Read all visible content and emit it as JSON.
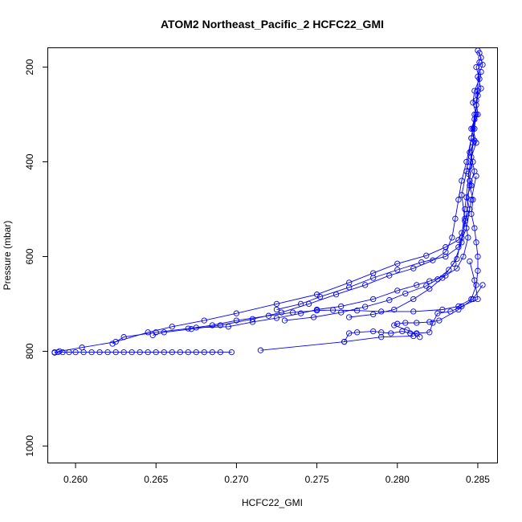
{
  "chart_data": {
    "type": "line",
    "title": "ATOM2 Northeast_Pacific_2 HCFC22_GMI",
    "xlabel": "HCFC22_GMI",
    "ylabel": "Pressure (mbar)",
    "xlim": [
      0.2583,
      0.2862
    ],
    "ylim": [
      1035,
      160
    ],
    "y_axis_inverted": true,
    "xticks": [
      0.26,
      0.265,
      0.27,
      0.275,
      0.28,
      0.285
    ],
    "xtick_labels": [
      "0.260",
      "0.265",
      "0.270",
      "0.275",
      "0.280",
      "0.285"
    ],
    "yticks": [
      200,
      400,
      600,
      800,
      1000
    ],
    "ytick_labels": [
      "200",
      "400",
      "600",
      "800",
      "1000"
    ],
    "grid": false,
    "legend": "none",
    "marker": "open-circle",
    "color": "#0000ff",
    "series": [
      {
        "points": [
          [
            0.285,
            165
          ],
          [
            0.2852,
            180
          ],
          [
            0.2849,
            200
          ],
          [
            0.2851,
            225
          ],
          [
            0.2848,
            250
          ],
          [
            0.2847,
            275
          ],
          [
            0.2849,
            300
          ],
          [
            0.2846,
            330
          ],
          [
            0.2848,
            355
          ],
          [
            0.2845,
            380
          ],
          [
            0.2847,
            400
          ],
          [
            0.2844,
            425
          ],
          [
            0.2846,
            450
          ],
          [
            0.2843,
            475
          ],
          [
            0.2845,
            500
          ],
          [
            0.2842,
            525
          ],
          [
            0.284,
            550
          ],
          [
            0.2838,
            565
          ],
          [
            0.283,
            580
          ],
          [
            0.2818,
            598
          ],
          [
            0.28,
            615
          ],
          [
            0.2785,
            635
          ],
          [
            0.277,
            655
          ],
          [
            0.275,
            680
          ],
          [
            0.2725,
            700
          ],
          [
            0.27,
            720
          ],
          [
            0.268,
            735
          ],
          [
            0.266,
            748
          ],
          [
            0.2645,
            760
          ],
          [
            0.2625,
            780
          ],
          [
            0.2604,
            792
          ],
          [
            0.259,
            800
          ],
          [
            0.2587,
            803
          ]
        ]
      },
      {
        "points": [
          [
            0.2851,
            170
          ],
          [
            0.2853,
            195
          ],
          [
            0.285,
            220
          ],
          [
            0.2852,
            245
          ],
          [
            0.2849,
            270
          ],
          [
            0.285,
            300
          ],
          [
            0.2847,
            330
          ],
          [
            0.2849,
            360
          ],
          [
            0.2846,
            390
          ],
          [
            0.2848,
            420
          ],
          [
            0.2845,
            450
          ],
          [
            0.2847,
            480
          ],
          [
            0.2846,
            510
          ],
          [
            0.2848,
            540
          ],
          [
            0.2849,
            570
          ],
          [
            0.285,
            600
          ],
          [
            0.285,
            630
          ],
          [
            0.2849,
            660
          ],
          [
            0.2846,
            690
          ],
          [
            0.2838,
            705
          ],
          [
            0.2828,
            712
          ],
          [
            0.281,
            716
          ],
          [
            0.279,
            716
          ],
          [
            0.2775,
            714
          ],
          [
            0.276,
            713
          ],
          [
            0.275,
            714
          ],
          [
            0.2735,
            718
          ],
          [
            0.272,
            725
          ],
          [
            0.27,
            735
          ],
          [
            0.2685,
            745
          ],
          [
            0.267,
            752
          ],
          [
            0.265,
            760
          ],
          [
            0.263,
            770
          ],
          [
            0.2623,
            784
          ]
        ]
      },
      {
        "points": [
          [
            0.2852,
            210
          ],
          [
            0.285,
            260
          ],
          [
            0.2848,
            310
          ],
          [
            0.2846,
            350
          ],
          [
            0.2843,
            400
          ],
          [
            0.284,
            440
          ],
          [
            0.2838,
            480
          ],
          [
            0.2836,
            520
          ],
          [
            0.2834,
            560
          ],
          [
            0.283,
            590
          ],
          [
            0.2822,
            608
          ],
          [
            0.281,
            625
          ],
          [
            0.2795,
            640
          ],
          [
            0.278,
            660
          ],
          [
            0.2762,
            680
          ],
          [
            0.2745,
            700
          ],
          [
            0.2728,
            718
          ],
          [
            0.271,
            732
          ],
          [
            0.269,
            745
          ],
          [
            0.2672,
            753
          ],
          [
            0.2655,
            760
          ],
          [
            0.2648,
            766
          ]
        ]
      },
      {
        "points": [
          [
            0.2848,
            300
          ],
          [
            0.2846,
            350
          ],
          [
            0.2843,
            420
          ],
          [
            0.284,
            470
          ],
          [
            0.2842,
            520
          ],
          [
            0.2844,
            560
          ],
          [
            0.2841,
            600
          ],
          [
            0.2837,
            625
          ],
          [
            0.283,
            640
          ],
          [
            0.282,
            652
          ],
          [
            0.2812,
            660
          ],
          [
            0.28,
            672
          ],
          [
            0.2785,
            690
          ],
          [
            0.2765,
            705
          ],
          [
            0.275,
            712
          ],
          [
            0.274,
            720
          ],
          [
            0.2725,
            730
          ],
          [
            0.271,
            738
          ],
          [
            0.2695,
            748
          ],
          [
            0.2675,
            750
          ]
        ]
      },
      {
        "points": [
          [
            0.285,
            250
          ],
          [
            0.2848,
            330
          ],
          [
            0.2845,
            410
          ],
          [
            0.2842,
            500
          ],
          [
            0.284,
            560
          ],
          [
            0.2837,
            605
          ],
          [
            0.2832,
            628
          ],
          [
            0.2825,
            648
          ],
          [
            0.2818,
            662
          ],
          [
            0.2805,
            678
          ],
          [
            0.2795,
            692
          ],
          [
            0.278,
            706
          ],
          [
            0.2765,
            718
          ],
          [
            0.2748,
            728
          ],
          [
            0.273,
            735
          ]
        ]
      },
      {
        "points": [
          [
            0.2845,
            610
          ],
          [
            0.2848,
            650
          ],
          [
            0.285,
            690
          ],
          [
            0.284,
            705
          ],
          [
            0.2833,
            716
          ],
          [
            0.2825,
            720
          ],
          [
            0.2822,
            740
          ],
          [
            0.282,
            760
          ],
          [
            0.2812,
            762
          ],
          [
            0.2808,
            762
          ],
          [
            0.2803,
            758
          ],
          [
            0.2796,
            762
          ],
          [
            0.279,
            760
          ],
          [
            0.2785,
            758
          ],
          [
            0.2775,
            760
          ],
          [
            0.277,
            762
          ],
          [
            0.2767,
            780
          ]
        ]
      },
      {
        "points": [
          [
            0.2853,
            660
          ],
          [
            0.2847,
            690
          ],
          [
            0.2838,
            712
          ],
          [
            0.2826,
            735
          ],
          [
            0.282,
            738
          ],
          [
            0.2812,
            740
          ],
          [
            0.2805,
            740
          ],
          [
            0.28,
            742
          ],
          [
            0.2798,
            745
          ],
          [
            0.2806,
            755
          ],
          [
            0.2812,
            763
          ],
          [
            0.2814,
            770
          ]
        ]
      },
      {
        "points": [
          [
            0.2849,
            430
          ],
          [
            0.2846,
            480
          ],
          [
            0.2843,
            540
          ],
          [
            0.2838,
            580
          ],
          [
            0.283,
            600
          ],
          [
            0.2815,
            612
          ],
          [
            0.28,
            628
          ],
          [
            0.2785,
            645
          ],
          [
            0.277,
            665
          ],
          [
            0.2752,
            685
          ],
          [
            0.274,
            700
          ],
          [
            0.2725,
            712
          ]
        ]
      },
      {
        "points": [
          [
            0.2851,
            190
          ],
          [
            0.2849,
            280
          ],
          [
            0.2847,
            360
          ],
          [
            0.2845,
            440
          ],
          [
            0.2843,
            510
          ],
          [
            0.284,
            570
          ],
          [
            0.2835,
            615
          ],
          [
            0.2828,
            645
          ],
          [
            0.282,
            668
          ],
          [
            0.281,
            690
          ],
          [
            0.2798,
            712
          ],
          [
            0.2785,
            722
          ],
          [
            0.277,
            728
          ]
        ]
      },
      {
        "points": [
          [
            0.2697,
            802
          ],
          [
            0.269,
            802
          ],
          [
            0.2685,
            802
          ],
          [
            0.268,
            802
          ],
          [
            0.2675,
            802
          ],
          [
            0.267,
            802
          ],
          [
            0.2665,
            802
          ],
          [
            0.266,
            802
          ],
          [
            0.2655,
            802
          ],
          [
            0.265,
            802
          ],
          [
            0.2645,
            802
          ],
          [
            0.264,
            802
          ],
          [
            0.2635,
            802
          ],
          [
            0.263,
            802
          ],
          [
            0.2625,
            802
          ],
          [
            0.262,
            802
          ],
          [
            0.2615,
            802
          ],
          [
            0.261,
            802
          ],
          [
            0.2605,
            802
          ],
          [
            0.26,
            802
          ],
          [
            0.2596,
            802
          ],
          [
            0.2592,
            802
          ],
          [
            0.2589,
            802
          ],
          [
            0.2587,
            802
          ]
        ]
      },
      {
        "points": [
          [
            0.2715,
            798
          ],
          [
            0.2767,
            780
          ],
          [
            0.279,
            770
          ],
          [
            0.281,
            768
          ]
        ]
      }
    ]
  }
}
